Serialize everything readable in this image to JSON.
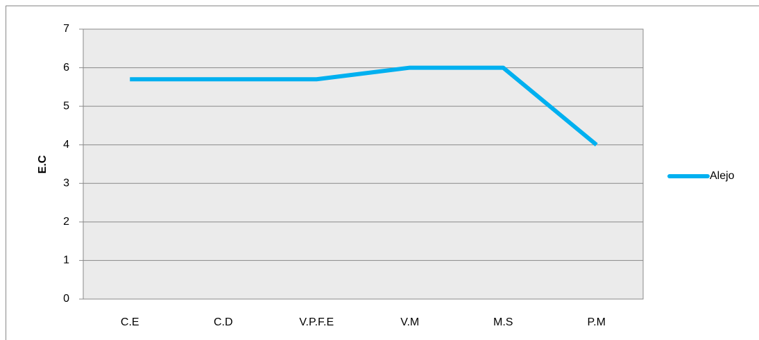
{
  "chart_data": {
    "type": "line",
    "y_label": "E.C",
    "categories": [
      "C.E",
      "C.D",
      "V.P.F.E",
      "V.M",
      "M.S",
      "P.M"
    ],
    "series": [
      {
        "name": "Alejo",
        "color": "#00b0f0",
        "values": [
          5.7,
          5.7,
          5.7,
          6,
          6,
          4
        ]
      }
    ],
    "ylim": [
      0,
      7
    ],
    "yticks": [
      0,
      1,
      2,
      3,
      4,
      5,
      6,
      7
    ],
    "grid": true,
    "legend": "right"
  }
}
